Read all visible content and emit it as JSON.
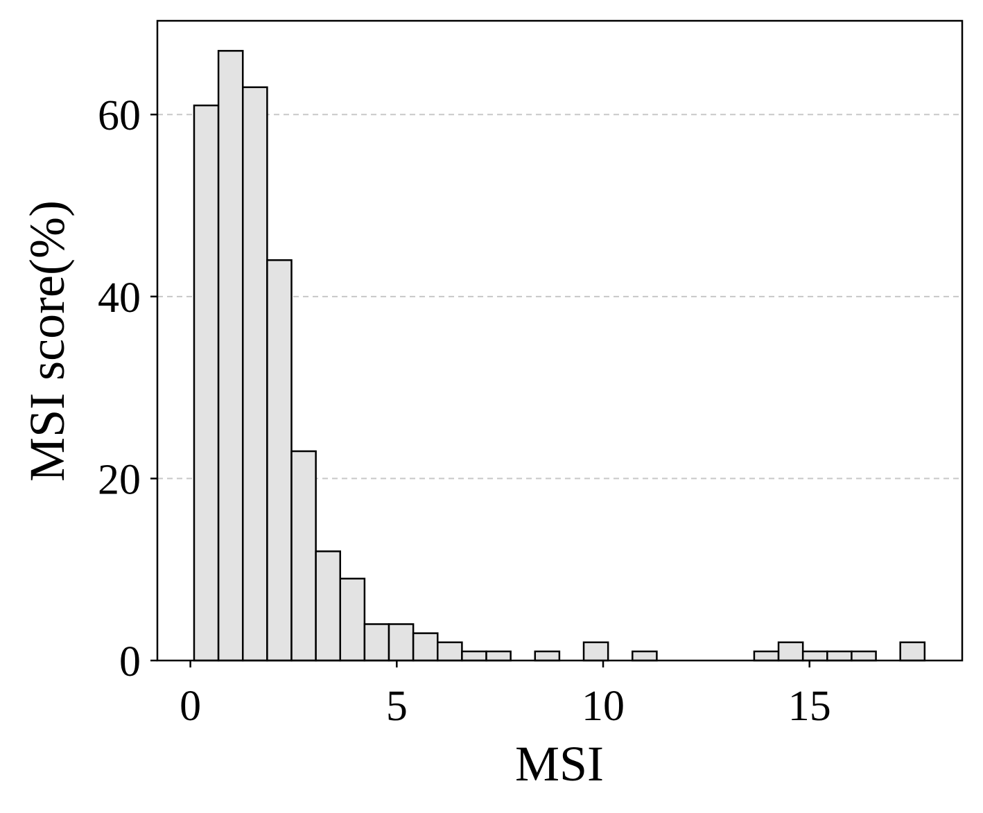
{
  "chart_data": {
    "type": "bar",
    "title": "",
    "xlabel": "MSI",
    "ylabel": "MSI score(%)",
    "xlim": [
      -0.8,
      18.7
    ],
    "ylim": [
      0,
      70.3
    ],
    "x_ticks": [
      0,
      5,
      10,
      15
    ],
    "y_ticks": [
      0,
      20,
      40,
      60
    ],
    "grid": "y-dashed",
    "legend": "none",
    "bin_width": 0.59,
    "bins": [
      {
        "x0": 0.09,
        "x1": 0.68,
        "value": 61
      },
      {
        "x0": 0.68,
        "x1": 1.27,
        "value": 67
      },
      {
        "x0": 1.27,
        "x1": 1.86,
        "value": 63
      },
      {
        "x0": 1.86,
        "x1": 2.45,
        "value": 44
      },
      {
        "x0": 2.45,
        "x1": 3.04,
        "value": 23
      },
      {
        "x0": 3.04,
        "x1": 3.63,
        "value": 12
      },
      {
        "x0": 3.63,
        "x1": 4.22,
        "value": 9
      },
      {
        "x0": 4.22,
        "x1": 4.81,
        "value": 4
      },
      {
        "x0": 4.81,
        "x1": 5.4,
        "value": 4
      },
      {
        "x0": 5.4,
        "x1": 5.99,
        "value": 3
      },
      {
        "x0": 5.99,
        "x1": 6.58,
        "value": 2
      },
      {
        "x0": 6.58,
        "x1": 7.17,
        "value": 1
      },
      {
        "x0": 7.17,
        "x1": 7.76,
        "value": 1
      },
      {
        "x0": 8.35,
        "x1": 8.94,
        "value": 1
      },
      {
        "x0": 9.53,
        "x1": 10.12,
        "value": 2
      },
      {
        "x0": 10.71,
        "x1": 11.3,
        "value": 1
      },
      {
        "x0": 13.66,
        "x1": 14.25,
        "value": 1
      },
      {
        "x0": 14.25,
        "x1": 14.84,
        "value": 2
      },
      {
        "x0": 14.84,
        "x1": 15.43,
        "value": 1
      },
      {
        "x0": 15.43,
        "x1": 16.02,
        "value": 1
      },
      {
        "x0": 16.02,
        "x1": 16.61,
        "value": 1
      },
      {
        "x0": 17.2,
        "x1": 17.79,
        "value": 2
      }
    ],
    "colors": {
      "bar_fill": "#e3e3e3",
      "bar_edge": "#000000",
      "grid": "#c8c8c8"
    }
  }
}
